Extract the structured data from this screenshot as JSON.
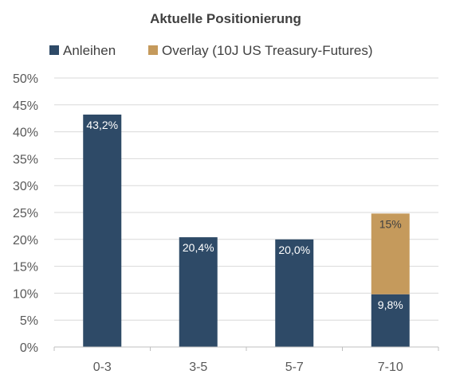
{
  "colors": {
    "anleihen": "#2e4a67",
    "overlay": "#c59a5c",
    "grid": "#d9d9d9",
    "axis": "#bfbfbf",
    "text": "#595959"
  },
  "chart_data": {
    "type": "bar",
    "stacked": true,
    "title": "Aktuelle Positionierung",
    "categories": [
      "0-3",
      "3-5",
      "5-7",
      "7-10"
    ],
    "series": [
      {
        "name": "Anleihen",
        "values": [
          43.2,
          20.4,
          20.0,
          9.8
        ],
        "labels": [
          "43,2%",
          "20,4%",
          "20,0%",
          "9,8%"
        ]
      },
      {
        "name": "Overlay (10J US Treasury-Futures)",
        "values": [
          0,
          0,
          0,
          15
        ],
        "labels": [
          "",
          "",
          "",
          "15%"
        ]
      }
    ],
    "ylim": [
      0,
      50
    ],
    "yticks": [
      "0%",
      "5%",
      "10%",
      "15%",
      "20%",
      "25%",
      "30%",
      "35%",
      "40%",
      "45%",
      "50%"
    ],
    "grid": true,
    "legend_position": "top"
  }
}
